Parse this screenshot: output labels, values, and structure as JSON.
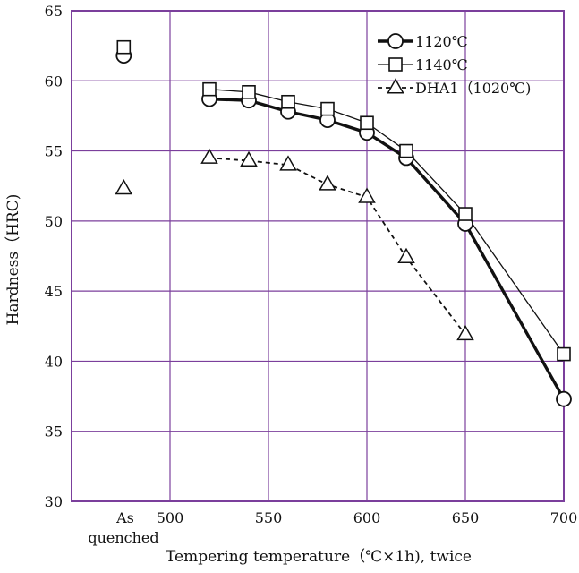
{
  "chart_data": {
    "type": "line",
    "title": "",
    "xlabel": "Tempering temperature（℃×1h), twice",
    "ylabel": "Hardness（HRC)",
    "x_tick_labels": [
      "500",
      "550",
      "600",
      "650",
      "700"
    ],
    "x_category_label_line1": "As",
    "x_category_label_line2": "quenched",
    "y_ticks": [
      30,
      35,
      40,
      45,
      50,
      55,
      60,
      65
    ],
    "xlim": [
      450,
      700
    ],
    "ylim": [
      30,
      65
    ],
    "grid": true,
    "legend_position": "top-right",
    "colors": {
      "grid": "#7b3f9c",
      "axes": "#7b3f9c",
      "series": "#111111"
    },
    "series": [
      {
        "name": "1120℃",
        "marker": "circle",
        "line_style": "solid-thick",
        "as_quenched": 61.8,
        "x": [
          520,
          540,
          560,
          580,
          600,
          620,
          650,
          700
        ],
        "y": [
          58.7,
          58.6,
          57.8,
          57.2,
          56.3,
          54.5,
          49.8,
          37.3
        ]
      },
      {
        "name": "1140℃",
        "marker": "square",
        "line_style": "solid-thin",
        "as_quenched": 62.4,
        "x": [
          520,
          540,
          560,
          580,
          600,
          620,
          650,
          700
        ],
        "y": [
          59.4,
          59.2,
          58.5,
          58.0,
          57.0,
          55.0,
          50.5,
          40.5
        ]
      },
      {
        "name": "DHA1（1020℃)",
        "marker": "triangle",
        "line_style": "dashed",
        "as_quenched": 52.3,
        "x": [
          520,
          540,
          560,
          580,
          600,
          620,
          650
        ],
        "y": [
          54.5,
          54.3,
          54.0,
          52.6,
          51.7,
          47.4,
          41.9
        ]
      }
    ]
  }
}
